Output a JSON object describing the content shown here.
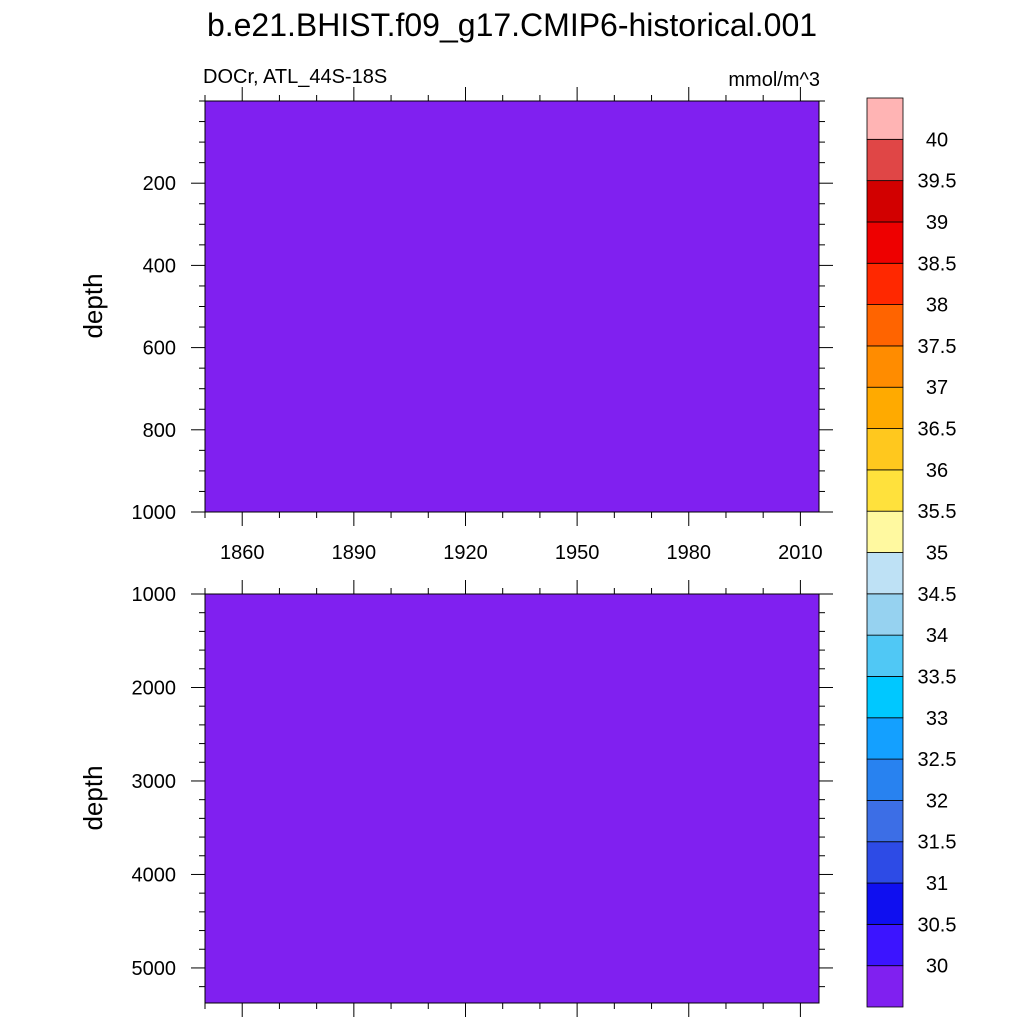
{
  "title": "b.e21.BHIST.f09_g17.CMIP6-historical.001",
  "left_label": "DOCr, ATL_44S-18S",
  "right_label": "mmol/m^3",
  "chart_data": {
    "type": "heatmap",
    "title": "b.e21.BHIST.f09_g17.CMIP6-historical.001",
    "variable": "DOCr",
    "region": "ATL_44S-18S",
    "units": "mmol/m^3",
    "fill_color": "#8020f0",
    "field_value_range": "below 30",
    "panels": [
      {
        "name": "upper",
        "ylabel": "depth",
        "ylim": [
          1000,
          0
        ],
        "y_ticks": [
          200,
          400,
          600,
          800,
          1000
        ],
        "y_minor_step": 50
      },
      {
        "name": "lower",
        "ylabel": "depth",
        "ylim": [
          5375,
          1000
        ],
        "y_ticks": [
          1000,
          2000,
          3000,
          4000,
          5000
        ],
        "y_minor_step": 200
      }
    ],
    "xlim": [
      1850,
      2015
    ],
    "x_ticks": [
      1860,
      1890,
      1920,
      1950,
      1980,
      2010
    ],
    "x_minor_step": 10,
    "x_tick_labels_between_panels": true,
    "colorbar": {
      "position": "right",
      "levels": [
        "30",
        "30.5",
        "31",
        "31.5",
        "32",
        "32.5",
        "33",
        "33.5",
        "34",
        "34.5",
        "35",
        "35.5",
        "36",
        "36.5",
        "37",
        "37.5",
        "38",
        "38.5",
        "39",
        "39.5",
        "40"
      ],
      "colors": [
        "#8020f0",
        "#3c14ff",
        "#0f0ff0",
        "#2d4be6",
        "#3c6ee6",
        "#2882f0",
        "#14a0ff",
        "#00c8ff",
        "#50c8f5",
        "#96d2f0",
        "#bee1f5",
        "#fff9a0",
        "#ffe13c",
        "#ffc81e",
        "#ffaa00",
        "#ff8c00",
        "#ff6400",
        "#ff2800",
        "#ee0000",
        "#d20000",
        "#e04646",
        "#ffb4b4"
      ]
    }
  }
}
